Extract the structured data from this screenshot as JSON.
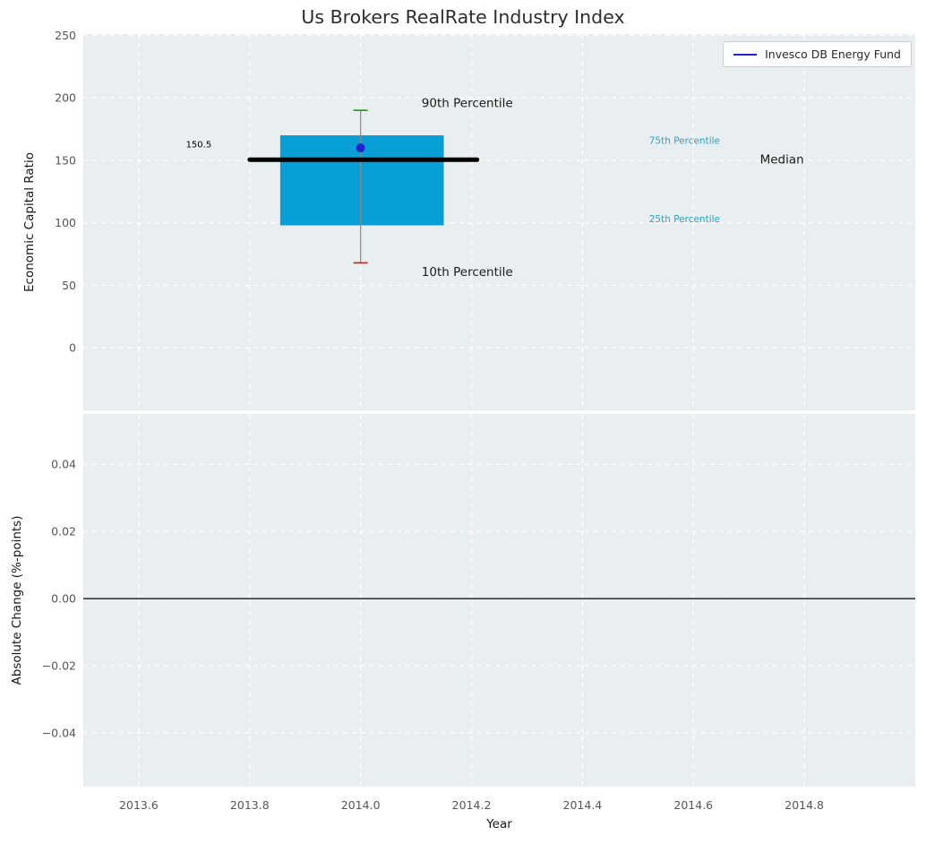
{
  "figure": {
    "title": "Us Brokers RealRate Industry Index",
    "background_color": "#ffffff",
    "plot_background_color": "#e9eef0",
    "grid_color": "#ffffff",
    "tick_label_color": "#555555",
    "axis_label_color": "#161616",
    "title_color": "#2d2d2d"
  },
  "legend": {
    "label": "Invesco DB Energy Fund",
    "line_color": "#2323cd"
  },
  "x_axis": {
    "label": "Year",
    "xlim": [
      2013.5,
      2015.0
    ],
    "ticks": [
      {
        "v": 2013.6,
        "label": "2013.6"
      },
      {
        "v": 2013.8,
        "label": "2013.8"
      },
      {
        "v": 2014.0,
        "label": "2014.0"
      },
      {
        "v": 2014.2,
        "label": "2014.2"
      },
      {
        "v": 2014.4,
        "label": "2014.4"
      },
      {
        "v": 2014.6,
        "label": "2014.6"
      },
      {
        "v": 2014.8,
        "label": "2014.8"
      }
    ]
  },
  "chart_data": [
    {
      "type": "box",
      "panel": "top",
      "title": "Us Brokers RealRate Industry Index",
      "ylabel": "Economic Capital Ratio",
      "xlabel": "",
      "xlim": [
        2013.5,
        2015.0
      ],
      "ylim": [
        -50,
        251
      ],
      "grid": true,
      "legend_position": "upper right",
      "yticks": [
        {
          "v": 0,
          "label": "0"
        },
        {
          "v": 50,
          "label": "50"
        },
        {
          "v": 100,
          "label": "100"
        },
        {
          "v": 150,
          "label": "150"
        },
        {
          "v": 200,
          "label": "200"
        },
        {
          "v": 250,
          "label": "250"
        }
      ],
      "box": {
        "series_name": "Invesco DB Energy Fund",
        "x": 2014.0,
        "p10": 68,
        "p25": 98,
        "median": 150.5,
        "p75": 170,
        "p90": 190,
        "fund_value": 160,
        "median_label": "150.5",
        "box_left": 2013.855,
        "box_right": 2014.15,
        "median_line_x0": 2013.8,
        "median_line_x1": 2014.21,
        "box_color": "#089fd7",
        "whisker_color": "#8a8a8a",
        "cap_top_color": "#2ca02c",
        "cap_bottom_color": "#d62728",
        "median_color": "#000000",
        "marker_color": "#2323cd"
      },
      "annotations": [
        {
          "text": "150.5",
          "x": 2013.685,
          "y": 163,
          "color": "#000000",
          "size": 10
        },
        {
          "text": "90th Percentile",
          "x": 2014.11,
          "y": 196,
          "color": "#1a1a1a",
          "size": 13.5
        },
        {
          "text": "10th Percentile",
          "x": 2014.11,
          "y": 61,
          "color": "#1a1a1a",
          "size": 13.5
        },
        {
          "text": "75th Percentile",
          "x": 2014.52,
          "y": 166,
          "color": "#2ba3c4",
          "size": 10.5
        },
        {
          "text": "25th Percentile",
          "x": 2014.52,
          "y": 103,
          "color": "#2ba3c4",
          "size": 10.5
        },
        {
          "text": "Median",
          "x": 2014.72,
          "y": 151,
          "color": "#1a1a1a",
          "size": 13.5
        }
      ]
    },
    {
      "type": "line",
      "panel": "bottom",
      "ylabel": "Absolute Change (%-points)",
      "xlabel": "Year",
      "xlim": [
        2013.5,
        2015.0
      ],
      "ylim": [
        -0.056,
        0.055
      ],
      "grid": true,
      "yticks": [
        {
          "v": 0.04,
          "label": "0.04"
        },
        {
          "v": 0.02,
          "label": "0.02"
        },
        {
          "v": 0.0,
          "label": "0.00"
        },
        {
          "v": -0.02,
          "label": "−0.02"
        },
        {
          "v": -0.04,
          "label": "−0.04"
        }
      ],
      "zero_line": {
        "y": 0.0,
        "color": "#000000"
      },
      "series": []
    }
  ]
}
